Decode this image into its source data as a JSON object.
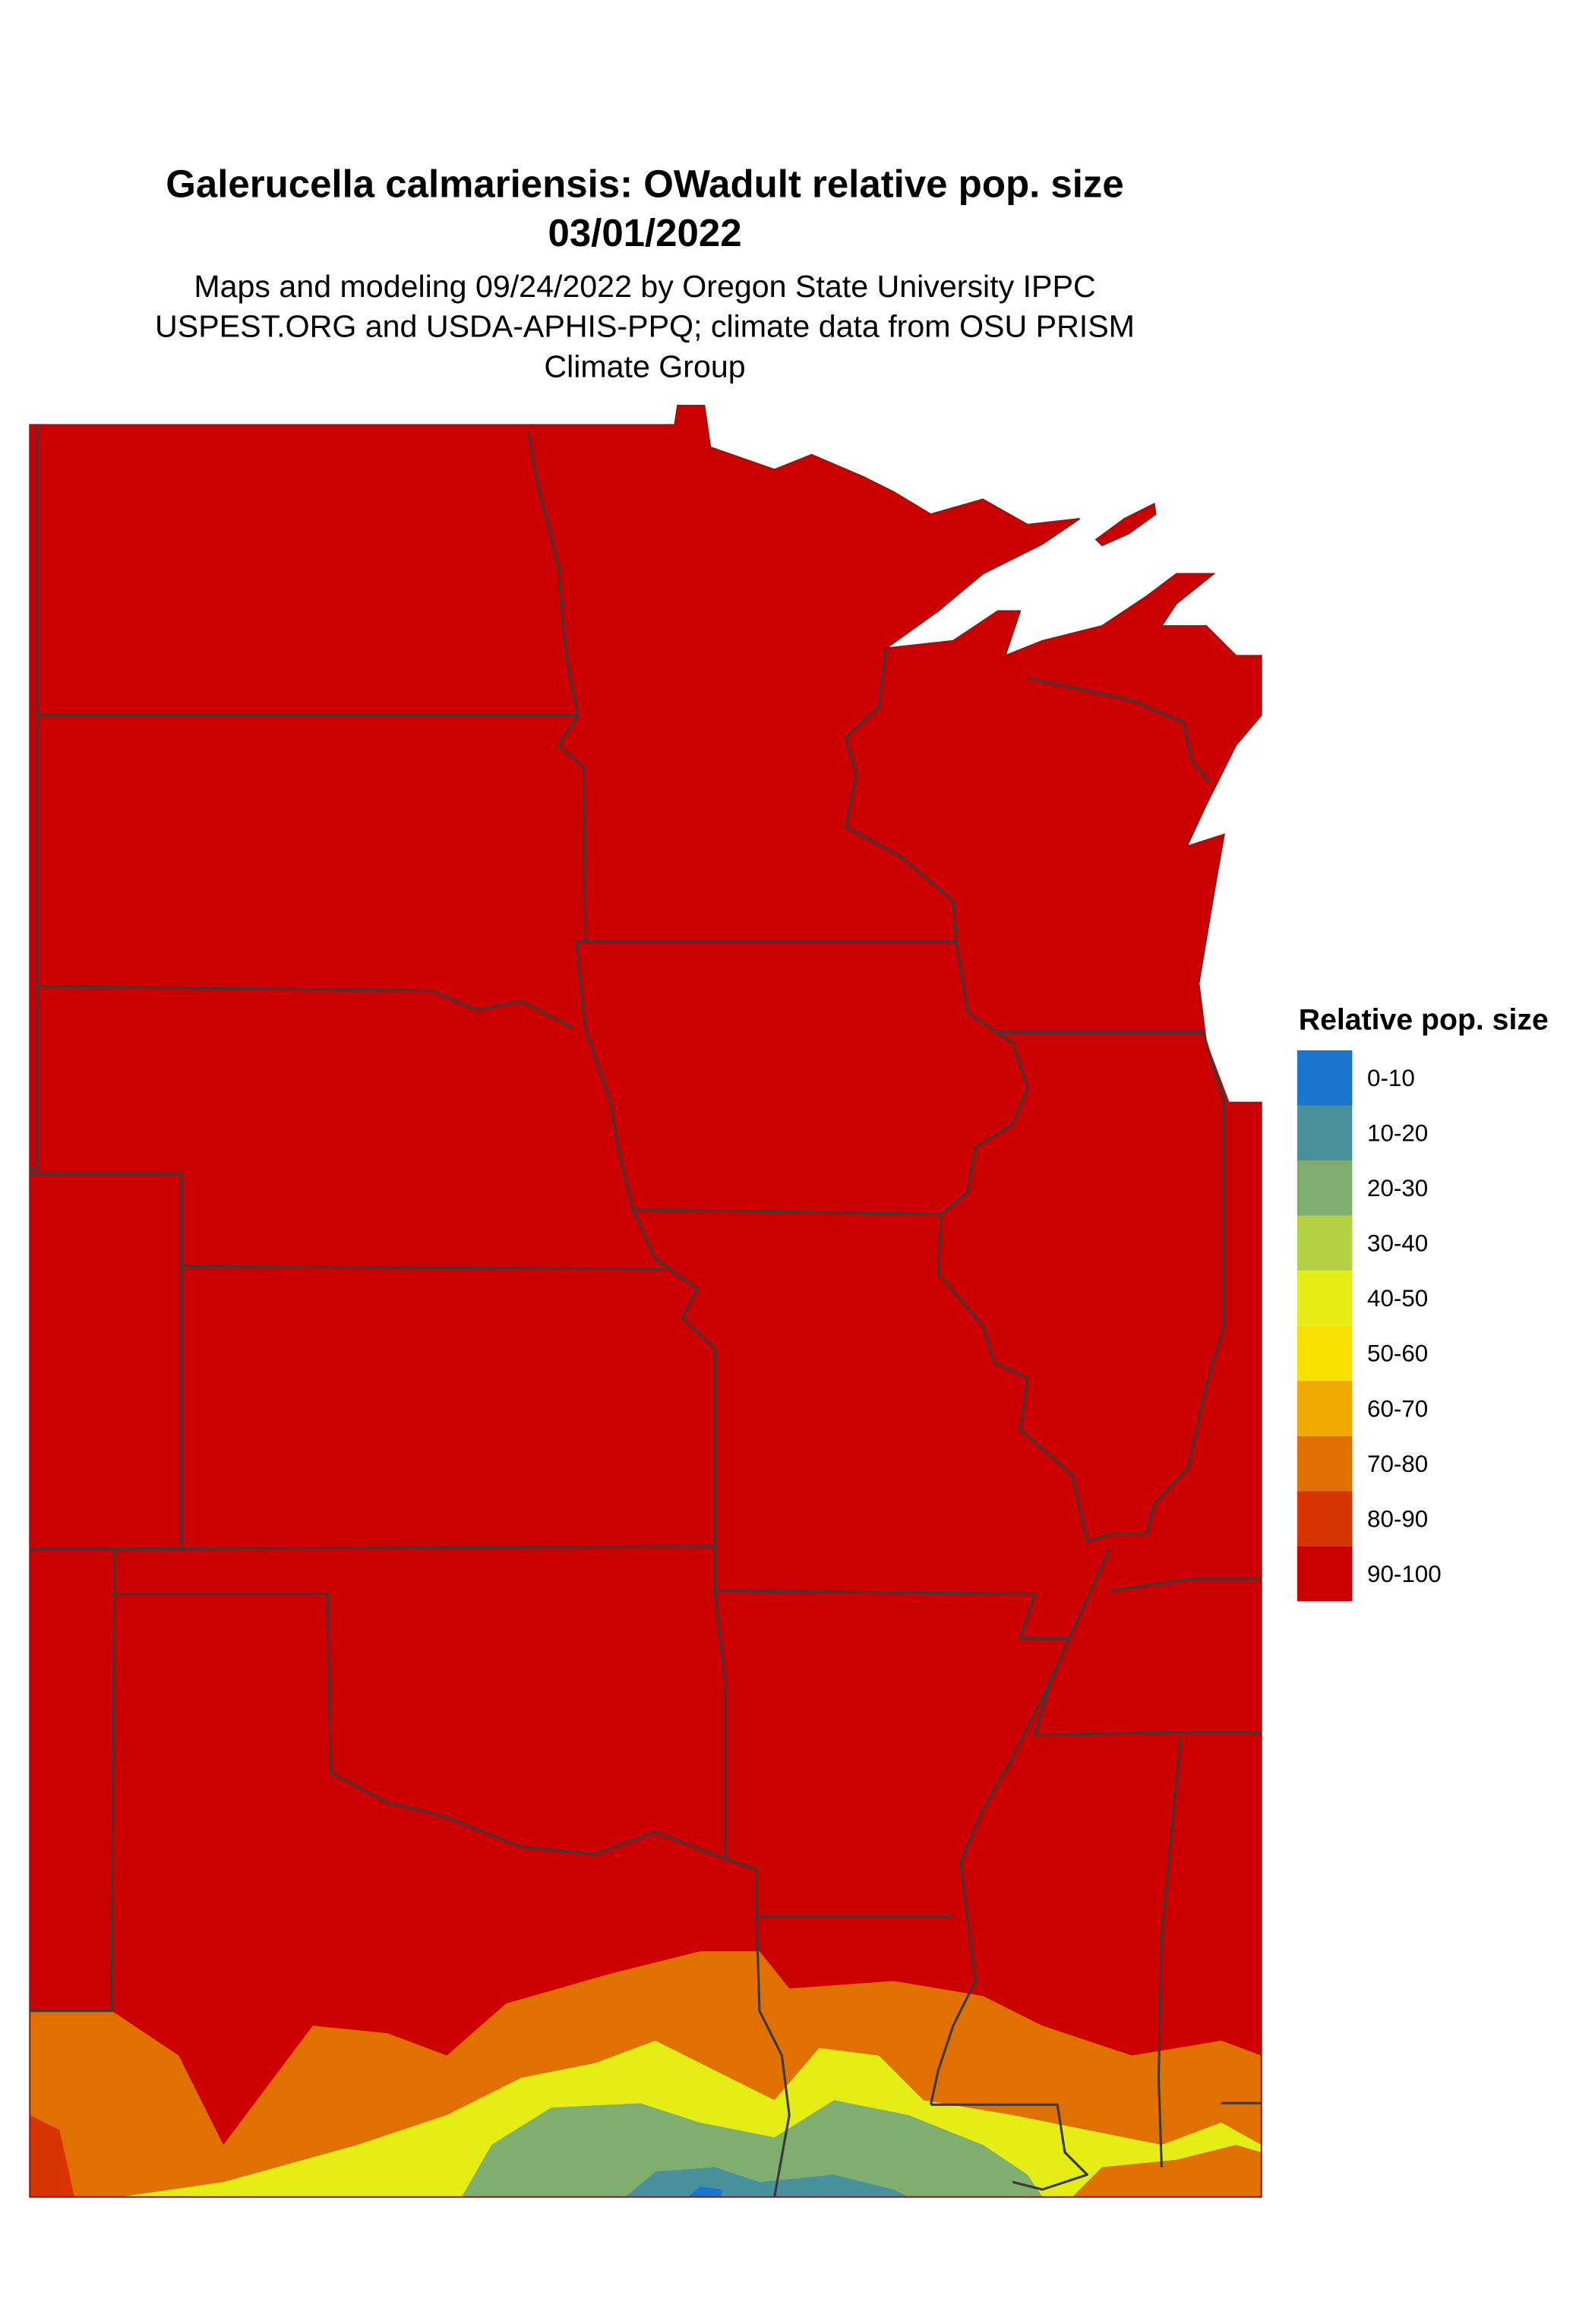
{
  "title": {
    "line1": "Galerucella calmariensis: OWadult relative pop. size",
    "line2": "03/01/2022"
  },
  "subtitle": {
    "line1": "Maps and modeling 09/24/2022 by Oregon State University IPPC",
    "line2": "USPEST.ORG and USDA-APHIS-PPQ; climate data from OSU PRISM",
    "line3": "Climate Group"
  },
  "legend": {
    "title": "Relative pop. size",
    "classes": [
      {
        "label": "0-10",
        "color": "#1a75cf"
      },
      {
        "label": "10-20",
        "color": "#4a919e"
      },
      {
        "label": "20-30",
        "color": "#7fae6f"
      },
      {
        "label": "30-40",
        "color": "#b3d142"
      },
      {
        "label": "40-50",
        "color": "#e5ee14"
      },
      {
        "label": "50-60",
        "color": "#f8e000"
      },
      {
        "label": "60-70",
        "color": "#eeaa00"
      },
      {
        "label": "70-80",
        "color": "#e07000"
      },
      {
        "label": "80-90",
        "color": "#d83400"
      },
      {
        "label": "90-100",
        "color": "#cc0000"
      }
    ]
  },
  "map": {
    "region": "Central United States",
    "dominant_class": "90-100",
    "boundary_color": "#3a3a3a"
  }
}
